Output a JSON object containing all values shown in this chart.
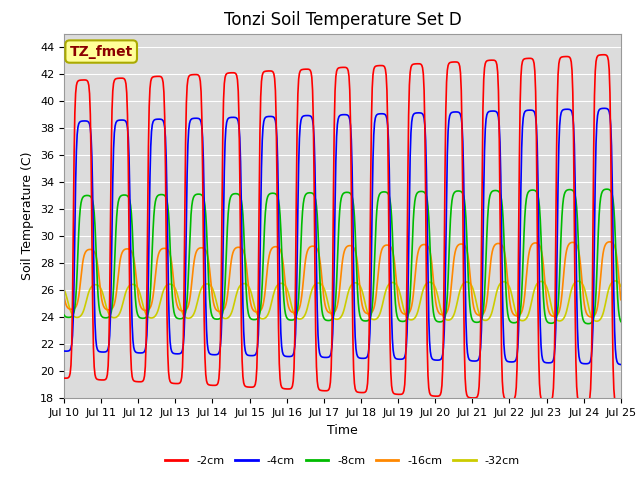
{
  "title": "Tonzi Soil Temperature Set D",
  "xlabel": "Time",
  "ylabel": "Soil Temperature (C)",
  "annotation": "TZ_fmet",
  "annotation_color": "#8B0000",
  "annotation_bg": "#FFFF99",
  "annotation_border": "#AAAA00",
  "ylim": [
    18,
    45
  ],
  "n_days": 15,
  "x_tick_labels": [
    "Jul 10",
    "Jul 11",
    "Jul 12",
    "Jul 13",
    "Jul 14",
    "Jul 15",
    "Jul 16",
    "Jul 17",
    "Jul 18",
    "Jul 19",
    "Jul 20",
    "Jul 21",
    "Jul 22",
    "Jul 23",
    "Jul 24",
    "Jul 25"
  ],
  "series_colors": [
    "#FF0000",
    "#0000FF",
    "#00BB00",
    "#FF8800",
    "#CCCC00"
  ],
  "series_labels": [
    "-2cm",
    "-4cm",
    "-8cm",
    "-16cm",
    "-32cm"
  ],
  "plot_bg_color": "#DCDCDC",
  "grid_color": "#FFFFFF",
  "title_fontsize": 12,
  "label_fontsize": 9,
  "tick_fontsize": 8,
  "line_width": 1.2,
  "figsize": [
    6.4,
    4.8
  ],
  "dpi": 100
}
